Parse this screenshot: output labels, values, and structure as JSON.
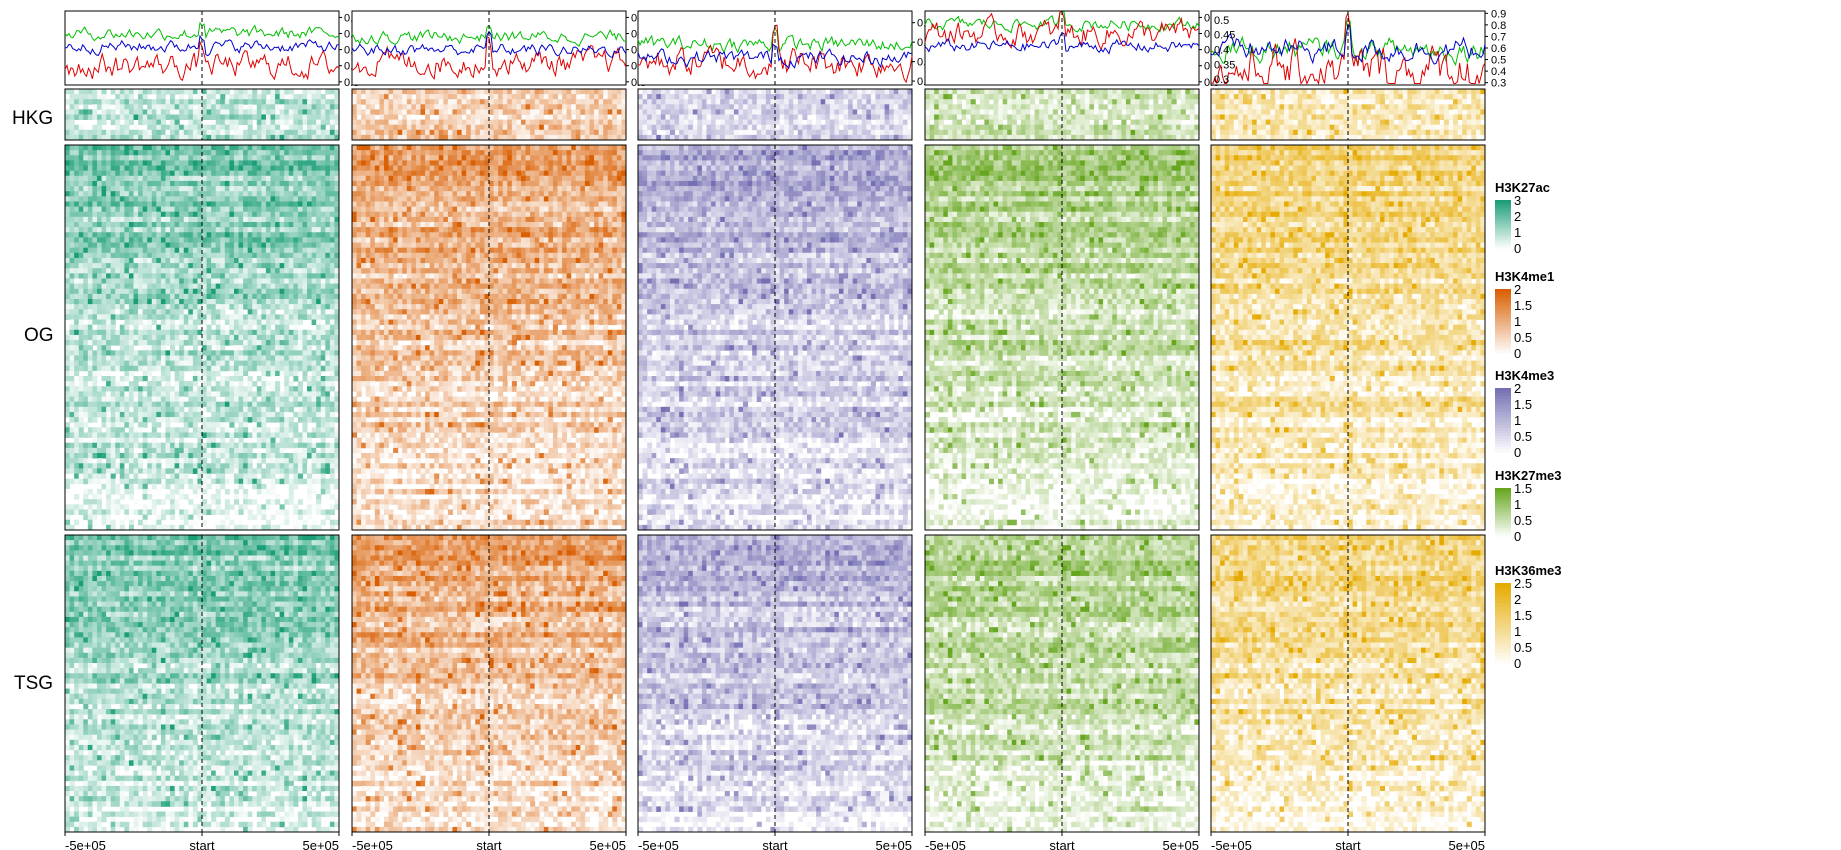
{
  "chart_data": {
    "type": "heatmap",
    "row_groups": [
      {
        "name": "HKG",
        "rows": 10
      },
      {
        "name": "OG",
        "rows": 75
      },
      {
        "name": "TSG",
        "rows": 58
      }
    ],
    "x_ticks": [
      "-5e+05",
      "start",
      "5e+05"
    ],
    "x_range": [
      -500000,
      500000
    ],
    "profile_lines": {
      "series_colors": {
        "HKG": "#00bf00",
        "OG": "#e00000",
        "TSG": "#0000cc"
      }
    },
    "tracks": [
      {
        "name": "H3K27ac",
        "color": "#1b9e77",
        "legend_ticks": [
          "3",
          "2",
          "1",
          "0"
        ],
        "legend_max": 3,
        "profile_ticks": [
          "0.7",
          "0.6",
          "0.5",
          "0.4",
          "0.3"
        ],
        "profile_ylim": [
          0.28,
          0.74
        ],
        "levels": {
          "HKG": 0.6,
          "OG": 0.4,
          "TSG": 0.52
        }
      },
      {
        "name": "H3K4me1",
        "color": "#d95f02",
        "legend_ticks": [
          "2",
          "1.5",
          "1",
          "0.5",
          "0"
        ],
        "legend_max": 2,
        "profile_ticks": [
          "0.7",
          "0.6",
          "0.5",
          "0.4",
          "0.3"
        ],
        "profile_ylim": [
          0.28,
          0.74
        ],
        "levels": {
          "HKG": 0.58,
          "OG": 0.42,
          "TSG": 0.5
        }
      },
      {
        "name": "H3K4me3",
        "color": "#7570b3",
        "legend_ticks": [
          "2",
          "1.5",
          "1",
          "0.5",
          "0"
        ],
        "legend_max": 2,
        "profile_ticks": [
          "0.6",
          "0.5",
          "0.4",
          "0.3"
        ],
        "profile_ylim": [
          0.28,
          0.66
        ],
        "levels": {
          "HKG": 0.49,
          "OG": 0.4,
          "TSG": 0.42
        }
      },
      {
        "name": "H3K27me3",
        "color": "#66a61e",
        "legend_ticks": [
          "1.5",
          "1",
          "0.5",
          "0"
        ],
        "legend_max": 1.5,
        "profile_ticks": [
          "0.7",
          "0.6",
          "0.5",
          "0.4",
          "0.3"
        ],
        "profile_ylim": [
          0.28,
          0.74
        ],
        "levels": {
          "HKG": 0.66,
          "OG": 0.6,
          "TSG": 0.52
        }
      },
      {
        "name": "H3K36me3",
        "color": "#e6ab02",
        "legend_ticks": [
          "2.5",
          "2",
          "1.5",
          "1",
          "0.5",
          "0"
        ],
        "legend_max": 2.5,
        "profile_ticks": [
          "0.5",
          "0.45",
          "0.4",
          "0.35",
          "0.3"
        ],
        "profile_ylim": [
          0.28,
          0.53
        ],
        "levels": {
          "HKG": 0.4,
          "OG": 0.33,
          "TSG": 0.4
        }
      }
    ],
    "right_axis_ticks": [
      "0.9",
      "0.8",
      "0.7",
      "0.6",
      "0.5",
      "0.4",
      "0.3"
    ],
    "right_axis_ylim": [
      0.28,
      0.92
    ]
  }
}
